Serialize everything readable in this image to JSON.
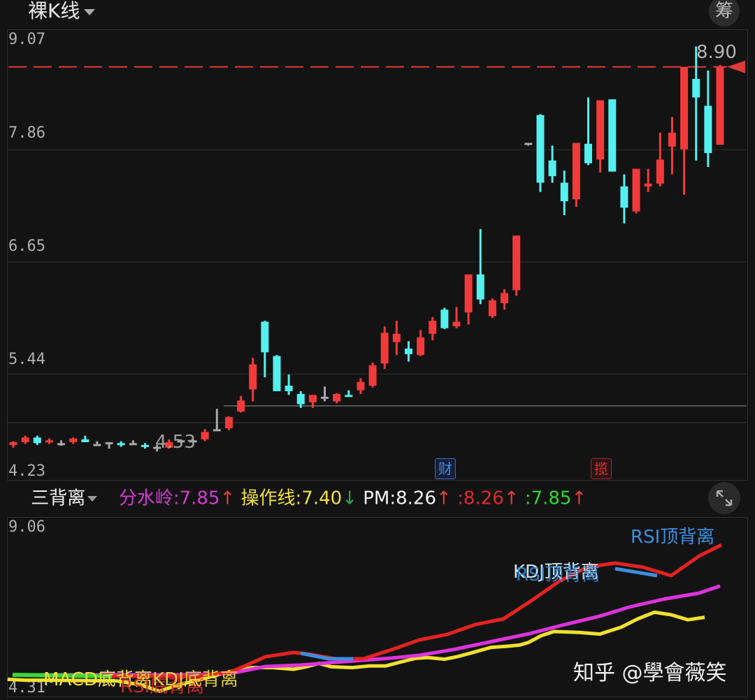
{
  "header": {
    "title": "裸K线",
    "right_button": "筹"
  },
  "main_chart": {
    "y_labels": [
      "9.07",
      "7.86",
      "6.65",
      "5.44",
      "4.23"
    ],
    "high_label": "8.90",
    "low_label": "4.53",
    "markers": [
      {
        "text": "财",
        "color": "#3f7fdc"
      },
      {
        "text": "揽",
        "color": "#e03030"
      }
    ]
  },
  "indicator_bar": {
    "name": "三背离",
    "items": [
      {
        "label": "分水岭:",
        "value": "7.85",
        "arrow": "↑",
        "color": "#d53ad5",
        "arrow_color": "#e0403a"
      },
      {
        "label": "操作线:",
        "value": "7.40",
        "arrow": "↓",
        "color": "#f0e040",
        "arrow_color": "#2ea84a"
      },
      {
        "label": "PM:",
        "value": "8.26",
        "arrow": "↑",
        "color": "#f5f5f5",
        "arrow_color": "#e0403a"
      },
      {
        "label": ":",
        "value": "8.26",
        "arrow": "↑",
        "color": "#e02a2a",
        "arrow_color": "#e0403a"
      },
      {
        "label": ":",
        "value": "7.85",
        "arrow": "↑",
        "color": "#2ed82e",
        "arrow_color": "#e0403a"
      }
    ]
  },
  "sub_chart": {
    "y_labels": [
      "9.06",
      "4.31"
    ],
    "annotations": [
      {
        "text": "RSI顶背离",
        "color": "#3a8fe0"
      },
      {
        "text": "KDJ顶背离",
        "color": "#cfe8f0"
      },
      {
        "text": "RSI顶背离",
        "color": "#3a8fe0"
      },
      {
        "text": "MACD底背离",
        "color": "#f0e040"
      },
      {
        "text": "KDJ底背离",
        "color": "#f0e040"
      },
      {
        "text": "RSI底背离",
        "color": "#e02a2a"
      }
    ]
  },
  "watermark": "知乎 @學會薇笑",
  "colors": {
    "up": "#f23a3a",
    "down": "#55f0f0",
    "flat": "#a8a8a8",
    "ref_line": "#e03a3a",
    "pm_red": "#e52222",
    "pm_magenta": "#dd33dd",
    "pm_yellow": "#f0e030"
  },
  "chart_data": {
    "type": "candlestick",
    "title": "裸K线",
    "ylim": [
      4.23,
      9.07
    ],
    "y_ticks": [
      9.07,
      7.86,
      6.65,
      5.44,
      4.23
    ],
    "ref_line": 8.68,
    "annotations": {
      "high": 8.9,
      "low": 4.53
    },
    "candles": [
      {
        "o": 4.6,
        "h": 4.64,
        "l": 4.57,
        "c": 4.63
      },
      {
        "o": 4.63,
        "h": 4.7,
        "l": 4.61,
        "c": 4.68
      },
      {
        "o": 4.68,
        "h": 4.7,
        "l": 4.6,
        "c": 4.62
      },
      {
        "o": 4.63,
        "h": 4.67,
        "l": 4.61,
        "c": 4.65
      },
      {
        "o": 4.62,
        "h": 4.65,
        "l": 4.59,
        "c": 4.62
      },
      {
        "o": 4.63,
        "h": 4.68,
        "l": 4.61,
        "c": 4.67
      },
      {
        "o": 4.66,
        "h": 4.7,
        "l": 4.63,
        "c": 4.63
      },
      {
        "o": 4.61,
        "h": 4.64,
        "l": 4.59,
        "c": 4.61
      },
      {
        "o": 4.62,
        "h": 4.63,
        "l": 4.56,
        "c": 4.63
      },
      {
        "o": 4.62,
        "h": 4.64,
        "l": 4.58,
        "c": 4.6
      },
      {
        "o": 4.62,
        "h": 4.65,
        "l": 4.6,
        "c": 4.62
      },
      {
        "o": 4.6,
        "h": 4.62,
        "l": 4.56,
        "c": 4.58
      },
      {
        "o": 4.58,
        "h": 4.6,
        "l": 4.53,
        "c": 4.57
      },
      {
        "o": 4.57,
        "h": 4.66,
        "l": 4.56,
        "c": 4.63
      },
      {
        "o": 4.64,
        "h": 4.66,
        "l": 4.62,
        "c": 4.65
      },
      {
        "o": 4.64,
        "h": 4.66,
        "l": 4.63,
        "c": 4.65
      },
      {
        "o": 4.66,
        "h": 4.77,
        "l": 4.64,
        "c": 4.74
      },
      {
        "o": 4.76,
        "h": 4.99,
        "l": 4.75,
        "c": 4.77
      },
      {
        "o": 4.78,
        "h": 4.91,
        "l": 4.76,
        "c": 4.9
      },
      {
        "o": 4.96,
        "h": 5.13,
        "l": 4.95,
        "c": 5.08
      },
      {
        "o": 5.2,
        "h": 5.54,
        "l": 5.07,
        "c": 5.47
      },
      {
        "o": 5.93,
        "h": 5.94,
        "l": 5.33,
        "c": 5.6
      },
      {
        "o": 5.56,
        "h": 5.57,
        "l": 5.19,
        "c": 5.18
      },
      {
        "o": 5.24,
        "h": 5.36,
        "l": 5.14,
        "c": 5.18
      },
      {
        "o": 5.15,
        "h": 5.18,
        "l": 5.0,
        "c": 5.04
      },
      {
        "o": 5.06,
        "h": 5.14,
        "l": 5.0,
        "c": 5.14
      },
      {
        "o": 5.12,
        "h": 5.23,
        "l": 5.07,
        "c": 5.12
      },
      {
        "o": 5.07,
        "h": 5.16,
        "l": 5.05,
        "c": 5.15
      },
      {
        "o": 5.14,
        "h": 5.19,
        "l": 5.12,
        "c": 5.12
      },
      {
        "o": 5.19,
        "h": 5.32,
        "l": 5.15,
        "c": 5.28
      },
      {
        "o": 5.24,
        "h": 5.49,
        "l": 5.22,
        "c": 5.46
      },
      {
        "o": 5.48,
        "h": 5.88,
        "l": 5.42,
        "c": 5.81
      },
      {
        "o": 5.71,
        "h": 5.94,
        "l": 5.57,
        "c": 5.8
      },
      {
        "o": 5.64,
        "h": 5.72,
        "l": 5.5,
        "c": 5.58
      },
      {
        "o": 5.57,
        "h": 5.84,
        "l": 5.56,
        "c": 5.76
      },
      {
        "o": 5.8,
        "h": 5.98,
        "l": 5.73,
        "c": 5.94
      },
      {
        "o": 6.06,
        "h": 6.08,
        "l": 5.85,
        "c": 5.86
      },
      {
        "o": 5.88,
        "h": 6.09,
        "l": 5.86,
        "c": 5.93
      },
      {
        "o": 6.03,
        "h": 6.44,
        "l": 5.9,
        "c": 6.44
      },
      {
        "o": 6.44,
        "h": 6.93,
        "l": 6.12,
        "c": 6.17
      },
      {
        "o": 5.99,
        "h": 6.18,
        "l": 5.97,
        "c": 6.16
      },
      {
        "o": 6.13,
        "h": 6.28,
        "l": 6.06,
        "c": 6.24
      },
      {
        "o": 6.27,
        "h": 6.86,
        "l": 6.21,
        "c": 6.86
      },
      {
        "o": 7.86,
        "h": 7.86,
        "l": 7.83,
        "c": 7.85
      },
      {
        "o": 8.16,
        "h": 8.17,
        "l": 7.33,
        "c": 7.43
      },
      {
        "o": 7.67,
        "h": 7.83,
        "l": 7.43,
        "c": 7.5
      },
      {
        "o": 7.43,
        "h": 7.56,
        "l": 7.08,
        "c": 7.23
      },
      {
        "o": 7.25,
        "h": 7.86,
        "l": 7.17,
        "c": 7.86
      },
      {
        "o": 7.85,
        "h": 8.35,
        "l": 7.62,
        "c": 7.64
      },
      {
        "o": 7.68,
        "h": 8.32,
        "l": 7.54,
        "c": 8.32
      },
      {
        "o": 8.33,
        "h": 8.33,
        "l": 7.55,
        "c": 7.55
      },
      {
        "o": 7.39,
        "h": 7.52,
        "l": 6.99,
        "c": 7.16
      },
      {
        "o": 7.12,
        "h": 7.55,
        "l": 7.1,
        "c": 7.58
      },
      {
        "o": 7.39,
        "h": 7.58,
        "l": 7.33,
        "c": 7.42
      },
      {
        "o": 7.42,
        "h": 7.97,
        "l": 7.39,
        "c": 7.68
      },
      {
        "o": 7.82,
        "h": 8.14,
        "l": 7.52,
        "c": 7.97
      },
      {
        "o": 7.79,
        "h": 8.67,
        "l": 7.3,
        "c": 8.68
      },
      {
        "o": 8.55,
        "h": 8.9,
        "l": 7.67,
        "c": 8.35
      },
      {
        "o": 8.26,
        "h": 8.64,
        "l": 7.6,
        "c": 7.75
      },
      {
        "o": 7.84,
        "h": 8.7,
        "l": 7.84,
        "c": 8.68
      }
    ],
    "sub_series": [
      {
        "name": "PM red (8.26)",
        "color": "#e52222"
      },
      {
        "name": "分水岭 magenta (7.85)",
        "color": "#dd33dd"
      },
      {
        "name": "操作线 yellow (7.40)",
        "color": "#f0e030"
      }
    ]
  }
}
